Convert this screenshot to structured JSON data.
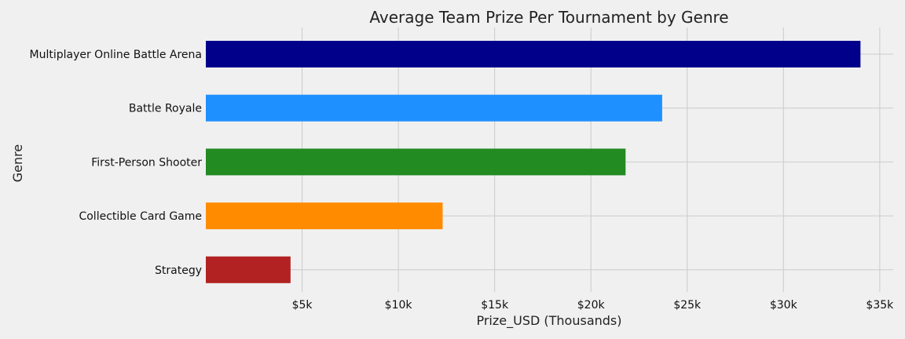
{
  "chart_data": {
    "type": "bar",
    "orientation": "horizontal",
    "title": "Average Team Prize Per Tournament by Genre",
    "xlabel": "Prize_USD (Thousands)",
    "ylabel": "Genre",
    "xlim": [
      0,
      35700
    ],
    "x_ticks": [
      {
        "value": 5000,
        "label": "$5k"
      },
      {
        "value": 10000,
        "label": "$10k"
      },
      {
        "value": 15000,
        "label": "$15k"
      },
      {
        "value": 20000,
        "label": "$20k"
      },
      {
        "value": 25000,
        "label": "$25k"
      },
      {
        "value": 30000,
        "label": "$30k"
      },
      {
        "value": 35000,
        "label": "$35k"
      }
    ],
    "grid": true,
    "categories": [
      "Multiplayer Online Battle Arena",
      "Battle Royale",
      "First-Person Shooter",
      "Collectible Card Game",
      "Strategy"
    ],
    "values": [
      34000,
      23700,
      21800,
      12300,
      4400
    ],
    "colors": [
      "#00008b",
      "#1e90ff",
      "#228b22",
      "#ff8c00",
      "#b22222"
    ]
  }
}
